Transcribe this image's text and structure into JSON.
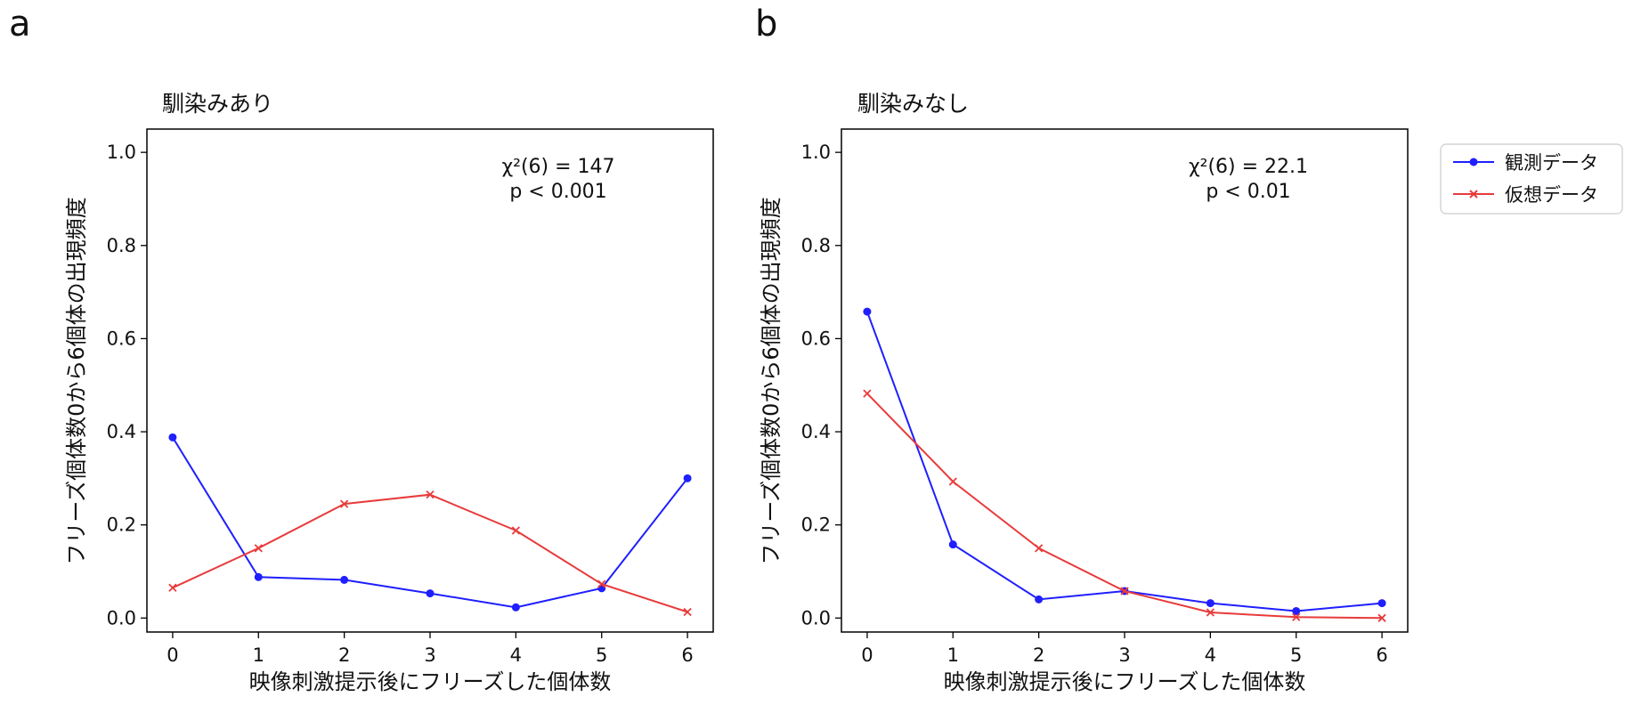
{
  "panels": [
    {
      "label": "a",
      "chart_data": {
        "type": "line",
        "title": "馴染みあり",
        "xlabel": "映像刺激提示後にフリーズした個体数",
        "ylabel": "フリーズ個体数0から6個体の出現頻度",
        "x": [
          0,
          1,
          2,
          3,
          4,
          5,
          6
        ],
        "xlim": [
          -0.3,
          6.3
        ],
        "ylim": [
          -0.03,
          1.05
        ],
        "xticks": [
          0,
          1,
          2,
          3,
          4,
          5,
          6
        ],
        "yticks": [
          0.0,
          0.2,
          0.4,
          0.6,
          0.8,
          1.0
        ],
        "grid": false,
        "series": [
          {
            "name": "観測データ",
            "color": "#1f1fff",
            "marker": "circle",
            "values": [
              0.388,
              0.088,
              0.082,
              0.053,
              0.023,
              0.064,
              0.3
            ]
          },
          {
            "name": "仮想データ",
            "color": "#e83b3b",
            "marker": "x",
            "values": [
              0.065,
              0.15,
              0.245,
              0.265,
              0.188,
              0.073,
              0.013
            ]
          }
        ],
        "annotation": {
          "line1": "χ²(6) = 147",
          "line2": "p < 0.001"
        }
      }
    },
    {
      "label": "b",
      "chart_data": {
        "type": "line",
        "title": "馴染みなし",
        "xlabel": "映像刺激提示後にフリーズした個体数",
        "ylabel": "フリーズ個体数0から6個体の出現頻度",
        "x": [
          0,
          1,
          2,
          3,
          4,
          5,
          6
        ],
        "xlim": [
          -0.3,
          6.3
        ],
        "ylim": [
          -0.03,
          1.05
        ],
        "xticks": [
          0,
          1,
          2,
          3,
          4,
          5,
          6
        ],
        "yticks": [
          0.0,
          0.2,
          0.4,
          0.6,
          0.8,
          1.0
        ],
        "grid": false,
        "series": [
          {
            "name": "観測データ",
            "color": "#1f1fff",
            "marker": "circle",
            "values": [
              0.658,
              0.158,
              0.04,
              0.058,
              0.032,
              0.015,
              0.032
            ]
          },
          {
            "name": "仮想データ",
            "color": "#e83b3b",
            "marker": "x",
            "values": [
              0.482,
              0.293,
              0.15,
              0.058,
              0.012,
              0.002,
              0.0
            ]
          }
        ],
        "annotation": {
          "line1": "χ²(6) = 22.1",
          "line2": "p < 0.01"
        }
      }
    }
  ],
  "legend": {
    "placement": "right of panel b, top",
    "items": [
      {
        "label": "観測データ",
        "color": "#1f1fff",
        "marker": "circle"
      },
      {
        "label": "仮想データ",
        "color": "#e83b3b",
        "marker": "x"
      }
    ]
  }
}
